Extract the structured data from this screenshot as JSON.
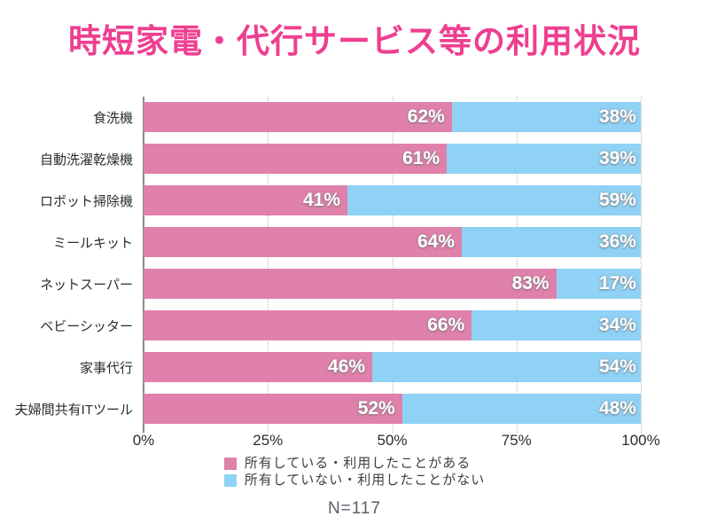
{
  "title": "時短家電・代行サービス等の利用状況",
  "colors": {
    "title": "#ee3f90",
    "owned_bar": "#df81ab",
    "not_owned_bar": "#90d2f5",
    "gridline": "#b9b9b9",
    "axis_line": "#8a8a8a"
  },
  "legend": [
    {
      "label": "所有している・利用したことがある",
      "color": "#df81ab"
    },
    {
      "label": "所有していない・利用したことがない",
      "color": "#90d2f5"
    }
  ],
  "footer": {
    "sample_size": "N=117"
  },
  "chart_data": {
    "type": "bar",
    "orientation": "horizontal",
    "stacked": true,
    "title": "時短家電・代行サービス等の利用状況",
    "categories": [
      "食洗機",
      "自動洗濯乾燥機",
      "ロボット掃除機",
      "ミールキット",
      "ネットスーパー",
      "ベビーシッター",
      "家事代行",
      "夫婦間共有ITツール"
    ],
    "series": [
      {
        "name": "所有している・利用したことがある",
        "color": "#df81ab",
        "values": [
          62,
          61,
          41,
          64,
          83,
          66,
          46,
          52
        ]
      },
      {
        "name": "所有していない・利用したことがない",
        "color": "#90d2f5",
        "values": [
          38,
          39,
          59,
          36,
          17,
          34,
          54,
          48
        ]
      }
    ],
    "value_suffix": "%",
    "xlim": [
      0,
      100
    ],
    "x_ticks": [
      {
        "label": "0%",
        "value": 0
      },
      {
        "label": "25%",
        "value": 25
      },
      {
        "label": "50%",
        "value": 50
      },
      {
        "label": "75%",
        "value": 75
      },
      {
        "label": "100%",
        "value": 100
      }
    ],
    "grid": "dotted-vertical",
    "legend_position": "bottom"
  }
}
